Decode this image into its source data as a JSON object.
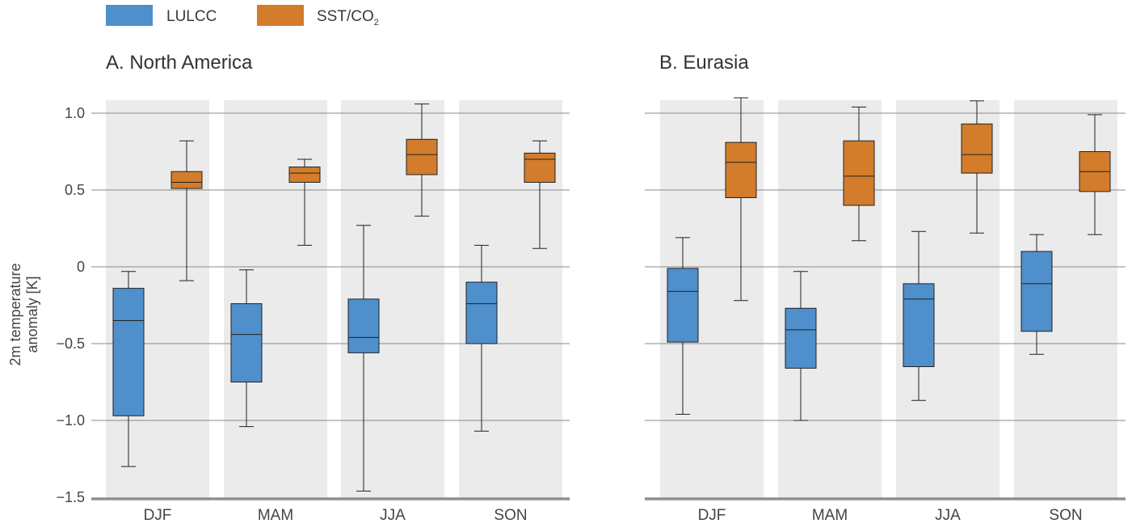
{
  "legend": {
    "lulcc_label": "LULCC",
    "sst_label_main": "SST/CO",
    "sst_label_sub": "2"
  },
  "colors": {
    "lulcc": "#4f8fcb",
    "sst": "#d27c2c",
    "panel_bg": "#ebebeb",
    "grid": "#8a8a8a",
    "axis": "#8f8f8f"
  },
  "chart_data": [
    {
      "type": "boxplot",
      "title": "A. North America",
      "ylabel": "2m temperature anomaly [K]",
      "ylim": [
        -1.5,
        1.15
      ],
      "yticks": [
        1.0,
        0.5,
        0,
        -0.5,
        -1.0,
        -1.5
      ],
      "ytick_labels": [
        "1.0",
        "0.5",
        "0",
        "−0.5",
        "−1.0",
        "−1.5"
      ],
      "grid": true,
      "categories": [
        "DJF",
        "MAM",
        "JJA",
        "SON"
      ],
      "series": [
        {
          "name": "LULCC",
          "boxes": [
            {
              "min": -1.3,
              "q1": -0.97,
              "median": -0.35,
              "q3": -0.14,
              "max": -0.03
            },
            {
              "min": -1.04,
              "q1": -0.75,
              "median": -0.44,
              "q3": -0.24,
              "max": -0.02
            },
            {
              "min": -1.46,
              "q1": -0.56,
              "median": -0.46,
              "q3": -0.21,
              "max": 0.27
            },
            {
              "min": -1.07,
              "q1": -0.5,
              "median": -0.24,
              "q3": -0.1,
              "max": 0.14
            }
          ]
        },
        {
          "name": "SST/CO2",
          "boxes": [
            {
              "min": -0.09,
              "q1": 0.51,
              "median": 0.55,
              "q3": 0.62,
              "max": 0.82
            },
            {
              "min": 0.14,
              "q1": 0.55,
              "median": 0.61,
              "q3": 0.65,
              "max": 0.7
            },
            {
              "min": 0.33,
              "q1": 0.6,
              "median": 0.73,
              "q3": 0.83,
              "max": 1.06
            },
            {
              "min": 0.12,
              "q1": 0.55,
              "median": 0.7,
              "q3": 0.74,
              "max": 0.82
            }
          ]
        }
      ]
    },
    {
      "type": "boxplot",
      "title": "B. Eurasia",
      "ylim": [
        -1.5,
        1.15
      ],
      "yticks": [
        1.0,
        0.5,
        0,
        -0.5,
        -1.0
      ],
      "grid": true,
      "categories": [
        "DJF",
        "MAM",
        "JJA",
        "SON"
      ],
      "series": [
        {
          "name": "LULCC",
          "boxes": [
            {
              "min": -0.96,
              "q1": -0.49,
              "median": -0.16,
              "q3": -0.01,
              "max": 0.19
            },
            {
              "min": -1.0,
              "q1": -0.66,
              "median": -0.41,
              "q3": -0.27,
              "max": -0.03
            },
            {
              "min": -0.87,
              "q1": -0.65,
              "median": -0.21,
              "q3": -0.11,
              "max": 0.23
            },
            {
              "min": -0.57,
              "q1": -0.42,
              "median": -0.11,
              "q3": 0.1,
              "max": 0.21
            }
          ]
        },
        {
          "name": "SST/CO2",
          "boxes": [
            {
              "min": -0.22,
              "q1": 0.45,
              "median": 0.68,
              "q3": 0.81,
              "max": 1.1
            },
            {
              "min": 0.17,
              "q1": 0.4,
              "median": 0.59,
              "q3": 0.82,
              "max": 1.04
            },
            {
              "min": 0.22,
              "q1": 0.61,
              "median": 0.73,
              "q3": 0.93,
              "max": 1.08
            },
            {
              "min": 0.21,
              "q1": 0.49,
              "median": 0.62,
              "q3": 0.75,
              "max": 0.99
            }
          ]
        }
      ]
    }
  ]
}
